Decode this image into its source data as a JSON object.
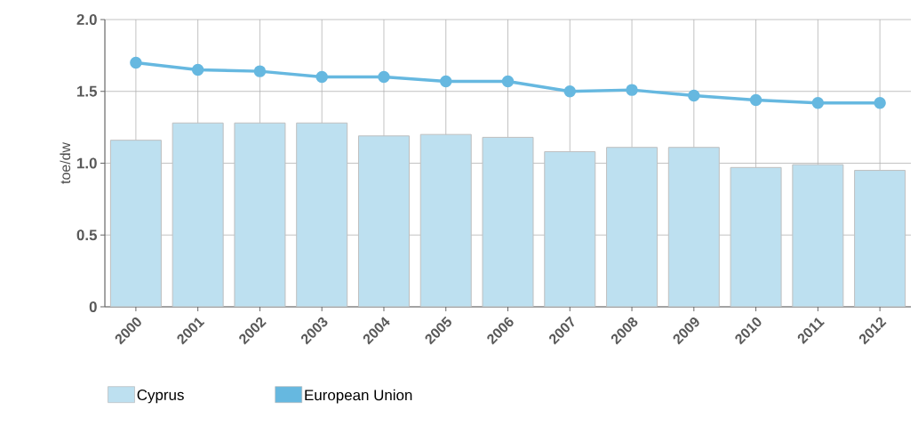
{
  "chart_data": {
    "type": "bar",
    "ylabel": "toe/dw",
    "categories": [
      "2000",
      "2001",
      "2002",
      "2003",
      "2004",
      "2005",
      "2006",
      "2007",
      "2008",
      "2009",
      "2010",
      "2011",
      "2012"
    ],
    "series": [
      {
        "name": "Cyprus",
        "color": "#bde0f0",
        "values": [
          1.16,
          1.28,
          1.28,
          1.28,
          1.19,
          1.2,
          1.18,
          1.08,
          1.11,
          1.11,
          0.97,
          0.99,
          0.95
        ]
      },
      {
        "name": "European Union",
        "type": "line",
        "color": "#66b8e0",
        "marker": "circle",
        "values": [
          1.7,
          1.65,
          1.64,
          1.6,
          1.6,
          1.57,
          1.57,
          1.5,
          1.51,
          1.47,
          1.44,
          1.42,
          1.42
        ]
      }
    ],
    "ylim": [
      0,
      2
    ],
    "yticks": [
      0,
      0.5,
      {
        "value": 1,
        "label": "1.0"
      },
      1.5,
      {
        "value": 2,
        "label": "2.0"
      }
    ],
    "grid": true,
    "legend": "bottom"
  }
}
